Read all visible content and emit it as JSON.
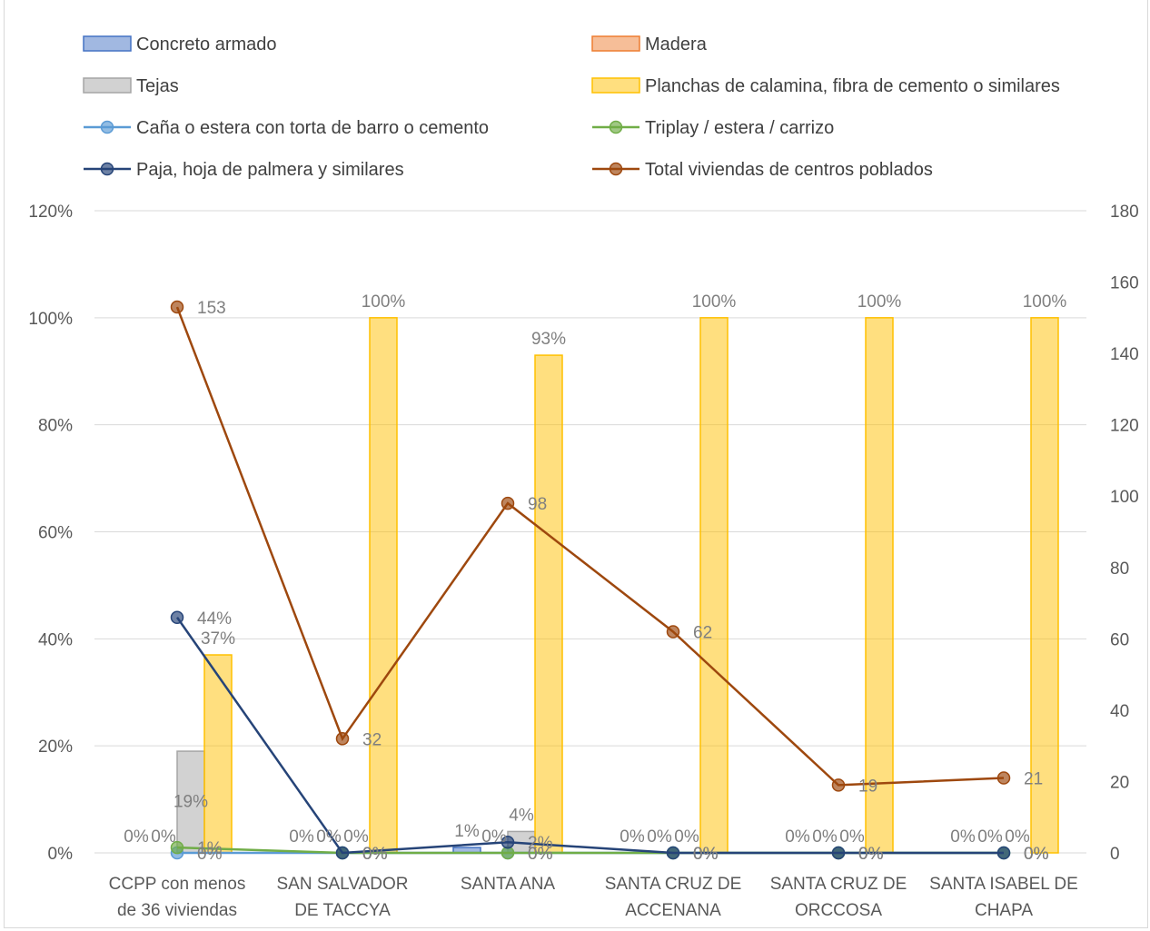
{
  "chart_data": {
    "type": "bar",
    "title": "",
    "categories": [
      [
        "CCPP con menos",
        "de 36 viviendas"
      ],
      [
        "SAN SALVADOR",
        "DE TACCYA"
      ],
      [
        "SANTA ANA"
      ],
      [
        "SANTA CRUZ DE",
        "ACCENANA"
      ],
      [
        "SANTA CRUZ DE",
        "ORCCOSA"
      ],
      [
        "SANTA ISABEL DE",
        "CHAPA"
      ]
    ],
    "y_left": {
      "ticks": [
        "0%",
        "20%",
        "40%",
        "60%",
        "80%",
        "100%",
        "120%"
      ],
      "range": [
        0,
        1.2
      ]
    },
    "y_right": {
      "ticks": [
        "0",
        "20",
        "40",
        "60",
        "80",
        "100",
        "120",
        "140",
        "160",
        "180"
      ],
      "range": [
        0,
        180
      ]
    },
    "grid": true,
    "legend_position": "top",
    "bar_series": [
      {
        "name": "Concreto armado",
        "color": "#4472c4",
        "values": [
          0,
          0,
          0.01,
          0,
          0,
          0
        ],
        "labels": [
          "0%",
          "0%",
          "1%",
          "0%",
          "0%",
          "0%"
        ]
      },
      {
        "name": "Madera",
        "color": "#ed7d31",
        "values": [
          0,
          0,
          0,
          0,
          0,
          0
        ],
        "labels": [
          "0%",
          "0%",
          "0%",
          "0%",
          "0%",
          "0%"
        ]
      },
      {
        "name": "Tejas",
        "color": "#a5a5a5",
        "values": [
          0.19,
          0,
          0.04,
          0,
          0,
          0
        ],
        "labels": [
          "19%",
          "0%",
          "4%",
          "0%",
          "0%",
          "0%"
        ]
      },
      {
        "name": "Planchas de calamina, fibra de cemento o similares",
        "color": "#ffc000",
        "values": [
          0.37,
          1.0,
          0.93,
          1.0,
          1.0,
          1.0
        ],
        "labels": [
          "37%",
          "100%",
          "93%",
          "100%",
          "100%",
          "100%"
        ]
      }
    ],
    "line_series": [
      {
        "name": "Caña o estera con torta de barro o cemento",
        "color": "#5b9bd5",
        "axis": "left",
        "values": [
          0,
          0,
          0,
          0,
          0,
          0
        ],
        "labels": [
          "0%",
          "0%",
          "0%",
          "0%",
          "0%",
          "0%"
        ]
      },
      {
        "name": "Triplay / estera / carrizo",
        "color": "#70ad47",
        "axis": "left",
        "values": [
          0.01,
          0,
          0,
          0,
          0,
          0
        ],
        "labels": [
          "1%",
          "0%",
          "0%",
          "0%",
          "0%",
          "0%"
        ]
      },
      {
        "name": "Paja, hoja de palmera y similares",
        "color": "#264478",
        "axis": "left",
        "values": [
          0.44,
          0,
          0.02,
          0,
          0,
          0
        ],
        "labels": [
          "44%",
          "0%",
          "2%",
          "0%",
          "0%",
          "0%"
        ]
      },
      {
        "name": "Total viviendas de centros poblados",
        "color": "#9e480e",
        "axis": "right",
        "values": [
          153,
          32,
          98,
          62,
          19,
          21
        ],
        "labels": [
          "153",
          "32",
          "98",
          "62",
          "19",
          "21"
        ]
      }
    ]
  }
}
